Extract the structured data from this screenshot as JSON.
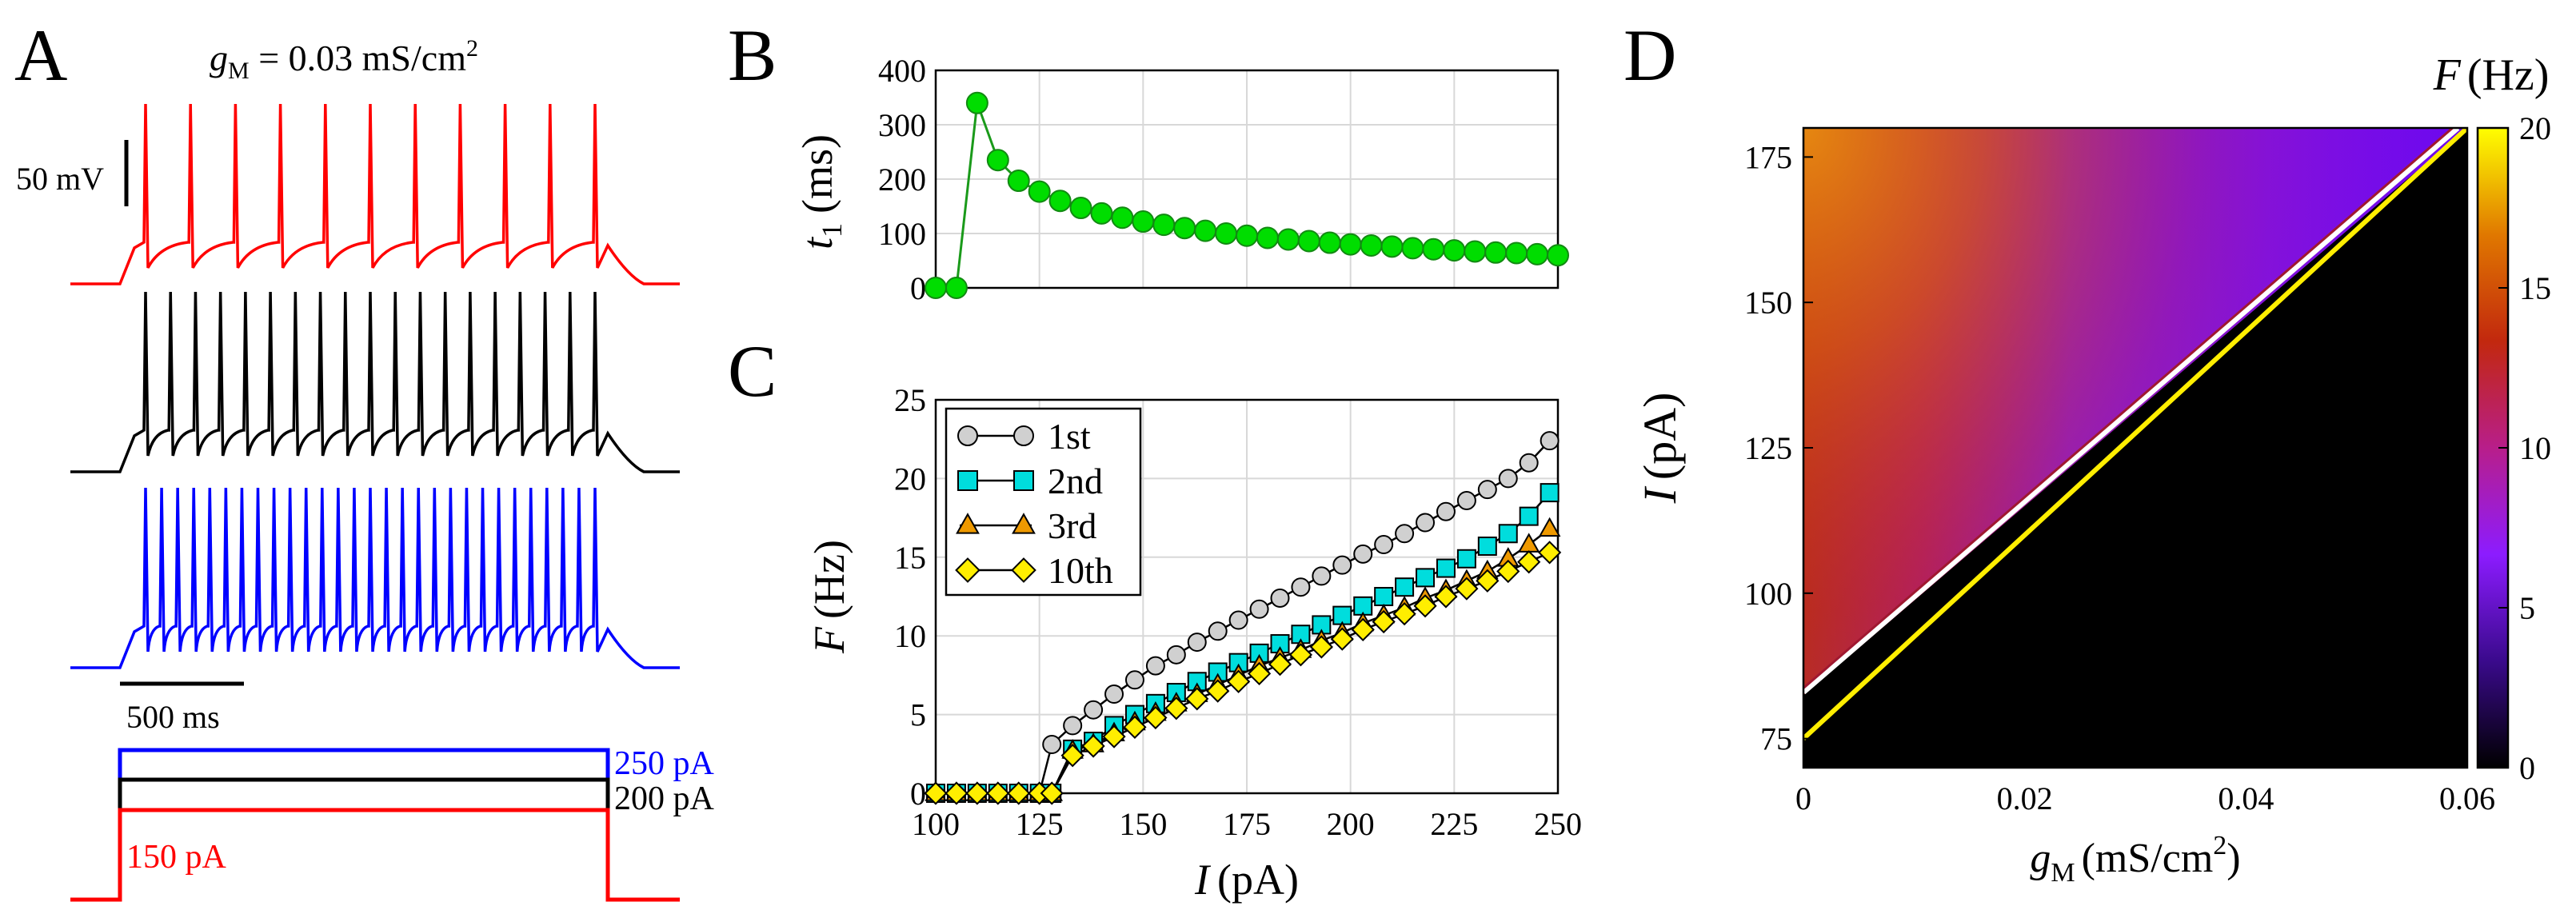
{
  "panel_letters": [
    "A",
    "B",
    "C",
    "D"
  ],
  "chart_data": [
    {
      "panel": "A",
      "type": "line",
      "title": "g_M = 0.03 mS/cm²",
      "title_parts": {
        "g": "g",
        "sub": "M",
        "rest": " = 0.03 mS/cm",
        "sup": "2"
      },
      "scalebars": {
        "voltage_label": "50 mV",
        "time_label": "500 ms"
      },
      "series": [
        {
          "name": "250 pA",
          "color": "#0000ff",
          "current_pA": 250,
          "spike_count": 29
        },
        {
          "name": "200 pA",
          "color": "#000000",
          "current_pA": 200,
          "spike_count": 19
        },
        {
          "name": "150 pA",
          "color": "#ff0000",
          "current_pA": 150,
          "spike_count": 11
        }
      ],
      "stimulus_labels": [
        "250 pA",
        "200 pA",
        "150 pA"
      ]
    },
    {
      "panel": "B",
      "type": "line",
      "xlabel": "",
      "ylabel_parts": {
        "var": "t",
        "sub": "1",
        "unit": "(ms)"
      },
      "ylim": [
        0,
        400
      ],
      "xlim": [
        100,
        250
      ],
      "yticks": [
        0,
        100,
        200,
        300,
        400
      ],
      "grid": true,
      "color": "#00dd00",
      "series": [
        {
          "x": [
            100,
            105,
            110,
            115,
            120,
            125,
            130,
            135,
            140,
            145,
            150,
            155,
            160,
            165,
            170,
            175,
            180,
            185,
            190,
            195,
            200,
            205,
            210,
            215,
            220,
            225,
            230,
            235,
            240,
            245,
            250
          ],
          "y": [
            0,
            0,
            340,
            235,
            197,
            177,
            160,
            147,
            137,
            129,
            122,
            116,
            110,
            105,
            100,
            96,
            92,
            89,
            86,
            83,
            80,
            78,
            76,
            73,
            71,
            69,
            67,
            65,
            64,
            62,
            60
          ]
        }
      ]
    },
    {
      "panel": "C",
      "type": "line",
      "xlabel_parts": {
        "var": "I",
        "unit": "(pA)"
      },
      "ylabel_parts": {
        "var": "F",
        "unit": "(Hz)"
      },
      "xlim": [
        100,
        250
      ],
      "ylim": [
        0,
        25
      ],
      "xticks": [
        100,
        125,
        150,
        175,
        200,
        225,
        250
      ],
      "yticks": [
        0,
        5,
        10,
        15,
        20,
        25
      ],
      "grid": true,
      "legend_position": "top-left",
      "x": [
        100,
        105,
        110,
        115,
        120,
        125,
        128,
        133,
        138,
        143,
        148,
        153,
        158,
        163,
        168,
        173,
        178,
        183,
        188,
        193,
        198,
        203,
        208,
        213,
        218,
        223,
        228,
        233,
        238,
        243,
        248
      ],
      "series": [
        {
          "name": "1st",
          "marker": "circle",
          "color": "#d0d0d0",
          "y": [
            0,
            0,
            0,
            0,
            0,
            0,
            3.1,
            4.3,
            5.3,
            6.3,
            7.2,
            8.1,
            8.8,
            9.6,
            10.3,
            11.0,
            11.7,
            12.4,
            13.1,
            13.8,
            14.5,
            15.2,
            15.8,
            16.5,
            17.2,
            17.9,
            18.6,
            19.3,
            20.0,
            21.0,
            22.4
          ]
        },
        {
          "name": "2nd",
          "marker": "square",
          "color": "#00dddd",
          "y": [
            0,
            0,
            0,
            0,
            0,
            0,
            0,
            2.8,
            3.3,
            4.3,
            5.0,
            5.7,
            6.4,
            7.1,
            7.7,
            8.3,
            8.9,
            9.5,
            10.1,
            10.7,
            11.3,
            11.9,
            12.5,
            13.1,
            13.7,
            14.3,
            14.9,
            15.7,
            16.5,
            17.6,
            19.1
          ]
        },
        {
          "name": "3rd",
          "marker": "triangle",
          "color": "#ee9900",
          "y": [
            0,
            0,
            0,
            0,
            0,
            0,
            0,
            2.7,
            3.1,
            3.8,
            4.5,
            5.1,
            5.7,
            6.3,
            6.9,
            7.5,
            8.1,
            8.6,
            9.1,
            9.7,
            10.2,
            10.8,
            11.3,
            11.8,
            12.4,
            12.9,
            13.5,
            14.1,
            14.9,
            15.8,
            16.8
          ]
        },
        {
          "name": "10th",
          "marker": "diamond",
          "color": "#ffee00",
          "y": [
            0,
            0,
            0,
            0,
            0,
            0,
            0,
            2.4,
            3.0,
            3.6,
            4.2,
            4.8,
            5.4,
            6.0,
            6.5,
            7.1,
            7.6,
            8.2,
            8.8,
            9.3,
            9.8,
            10.4,
            10.9,
            11.4,
            11.9,
            12.5,
            13.0,
            13.5,
            14.1,
            14.7,
            15.3
          ]
        }
      ]
    },
    {
      "panel": "D",
      "type": "heatmap",
      "xlabel_parts": {
        "var": "g",
        "sub": "M",
        "unit": "(mS/cm",
        "sup": "2",
        "close": ")"
      },
      "ylabel_parts": {
        "var": "I",
        "unit": "(pA)"
      },
      "xlim": [
        0,
        0.06
      ],
      "ylim": [
        70,
        180
      ],
      "xticks": [
        "0",
        "0.02",
        "0.04",
        "0.06"
      ],
      "yticks": [
        75,
        100,
        125,
        150,
        175
      ],
      "colorbar": {
        "title_parts": {
          "var": "F",
          "unit": "(Hz)"
        },
        "range": [
          0,
          20
        ],
        "ticks": [
          0,
          5,
          10,
          15,
          20
        ],
        "stops": [
          "#000000",
          "#3a0a8c",
          "#8c1cff",
          "#b81e8a",
          "#c2280e",
          "#e07800",
          "#ffff00"
        ]
      },
      "boundaries": [
        {
          "name": "yellow line",
          "color": "#ffee00",
          "I_at_0": 75,
          "I_at_0.06": 180
        },
        {
          "name": "white band",
          "color": "#ffffff",
          "I_at_0": 83,
          "I_at_0.06": 180
        }
      ],
      "corner_values_Hz": {
        "top_left": 17,
        "mid_left": 11,
        "near_boundary": 6
      }
    }
  ]
}
